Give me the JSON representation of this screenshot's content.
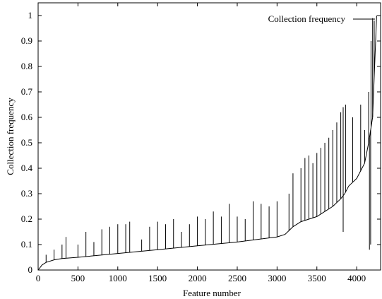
{
  "chart_data": {
    "type": "line",
    "title": "",
    "xlabel": "Feature number",
    "ylabel": "Collection frequency",
    "xlim": [
      0,
      4300
    ],
    "ylim": [
      0,
      1.05
    ],
    "xticks": [
      0,
      500,
      1000,
      1500,
      2000,
      2500,
      3000,
      3500,
      4000
    ],
    "yticks": [
      0,
      0.1,
      0.2,
      0.3,
      0.4,
      0.5,
      0.6,
      0.7,
      0.8,
      0.9,
      1
    ],
    "xtick_labels": [
      "0",
      "500",
      "1000",
      "1500",
      "2000",
      "2500",
      "3000",
      "3500",
      "4000"
    ],
    "ytick_labels": [
      "0",
      "0.1",
      "0.2",
      "0.3",
      "0.4",
      "0.5",
      "0.6",
      "0.7",
      "0.8",
      "0.9",
      "1"
    ],
    "legend_position": "top-right",
    "grid": false,
    "series": [
      {
        "name": "Collection frequency",
        "color": "#000000",
        "baseline": {
          "x": [
            0,
            50,
            100,
            200,
            300,
            500,
            1000,
            1500,
            2000,
            2500,
            3000,
            3100,
            3200,
            3300,
            3400,
            3500,
            3600,
            3700,
            3800,
            3850,
            3900,
            4000,
            4100,
            4150,
            4200,
            4250
          ],
          "y": [
            0.0,
            0.02,
            0.03,
            0.04,
            0.045,
            0.05,
            0.065,
            0.08,
            0.095,
            0.11,
            0.13,
            0.14,
            0.17,
            0.19,
            0.2,
            0.21,
            0.23,
            0.25,
            0.28,
            0.3,
            0.33,
            0.36,
            0.42,
            0.5,
            0.6,
            1.0
          ]
        },
        "spikes": [
          [
            100,
            0.06
          ],
          [
            200,
            0.08
          ],
          [
            300,
            0.1
          ],
          [
            350,
            0.13
          ],
          [
            500,
            0.1
          ],
          [
            600,
            0.15
          ],
          [
            700,
            0.11
          ],
          [
            800,
            0.16
          ],
          [
            900,
            0.17
          ],
          [
            1000,
            0.18
          ],
          [
            1100,
            0.18
          ],
          [
            1150,
            0.19
          ],
          [
            1300,
            0.12
          ],
          [
            1400,
            0.17
          ],
          [
            1500,
            0.19
          ],
          [
            1600,
            0.18
          ],
          [
            1700,
            0.2
          ],
          [
            1800,
            0.15
          ],
          [
            1900,
            0.18
          ],
          [
            2000,
            0.21
          ],
          [
            2100,
            0.2
          ],
          [
            2200,
            0.23
          ],
          [
            2300,
            0.21
          ],
          [
            2400,
            0.26
          ],
          [
            2500,
            0.21
          ],
          [
            2600,
            0.2
          ],
          [
            2700,
            0.27
          ],
          [
            2800,
            0.26
          ],
          [
            2900,
            0.25
          ],
          [
            3000,
            0.27
          ],
          [
            3150,
            0.3
          ],
          [
            3200,
            0.38
          ],
          [
            3300,
            0.4
          ],
          [
            3350,
            0.44
          ],
          [
            3400,
            0.45
          ],
          [
            3450,
            0.42
          ],
          [
            3500,
            0.46
          ],
          [
            3550,
            0.48
          ],
          [
            3600,
            0.5
          ],
          [
            3650,
            0.52
          ],
          [
            3700,
            0.55
          ],
          [
            3750,
            0.58
          ],
          [
            3800,
            0.62
          ],
          [
            3830,
            0.64
          ],
          [
            3860,
            0.65
          ],
          [
            3950,
            0.6
          ],
          [
            4050,
            0.65
          ],
          [
            4100,
            0.55
          ],
          [
            4150,
            0.7
          ],
          [
            4180,
            0.9
          ],
          [
            4200,
            0.99
          ],
          [
            4220,
            0.98
          ]
        ],
        "dips": [
          [
            3830,
            0.15
          ],
          [
            4160,
            0.08
          ],
          [
            4175,
            0.1
          ]
        ]
      }
    ]
  }
}
